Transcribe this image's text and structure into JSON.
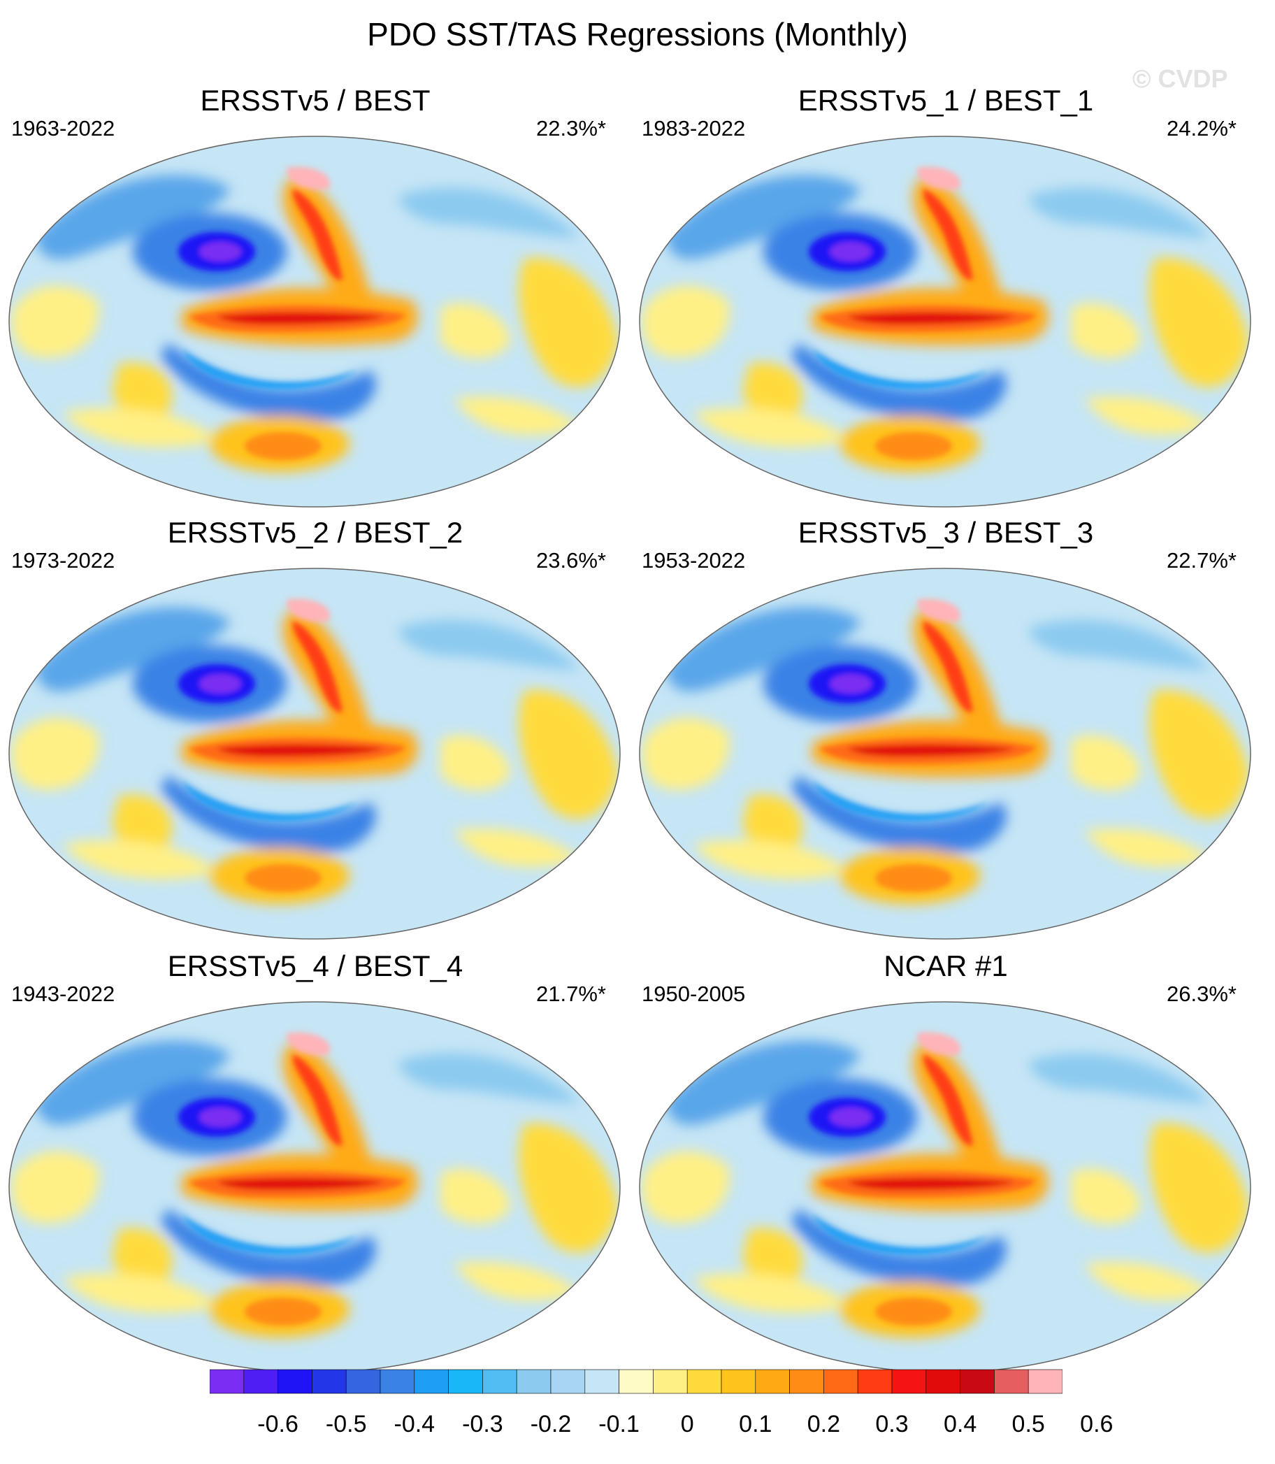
{
  "title": "PDO SST/TAS Regressions (Monthly)",
  "watermark": "© CVDP",
  "panels": [
    {
      "name": "ERSSTv5 / BEST",
      "period": "1963-2022",
      "pct": "22.3%*"
    },
    {
      "name": "ERSSTv5_1 / BEST_1",
      "period": "1983-2022",
      "pct": "24.2%*"
    },
    {
      "name": "ERSSTv5_2 / BEST_2",
      "period": "1973-2022",
      "pct": "23.6%*"
    },
    {
      "name": "ERSSTv5_3 / BEST_3",
      "period": "1953-2022",
      "pct": "22.7%*"
    },
    {
      "name": "ERSSTv5_4 / BEST_4",
      "period": "1943-2022",
      "pct": "21.7%*"
    },
    {
      "name": "NCAR #1",
      "period": "1950-2005",
      "pct": "26.3%*"
    }
  ],
  "colorbar": {
    "colors": [
      "#7a2ef2",
      "#4e1ef5",
      "#1e14f5",
      "#2437e8",
      "#3565e0",
      "#3a82e6",
      "#1e9ff5",
      "#19b7f7",
      "#52bdf2",
      "#8ccaf0",
      "#a8d5f2",
      "#c6e5f5",
      "#fffbc6",
      "#fff085",
      "#ffdb3c",
      "#ffc31e",
      "#ffaa14",
      "#ff8c14",
      "#ff6a14",
      "#ff3c14",
      "#f51414",
      "#e10b0b",
      "#c80a14",
      "#e65f5f",
      "#ffb4b9"
    ],
    "labels": [
      "-0.6",
      "-0.5",
      "-0.4",
      "-0.3",
      "-0.2",
      "-0.1",
      "0",
      "0.1",
      "0.2",
      "0.3",
      "0.4",
      "0.5",
      "0.6"
    ]
  }
}
